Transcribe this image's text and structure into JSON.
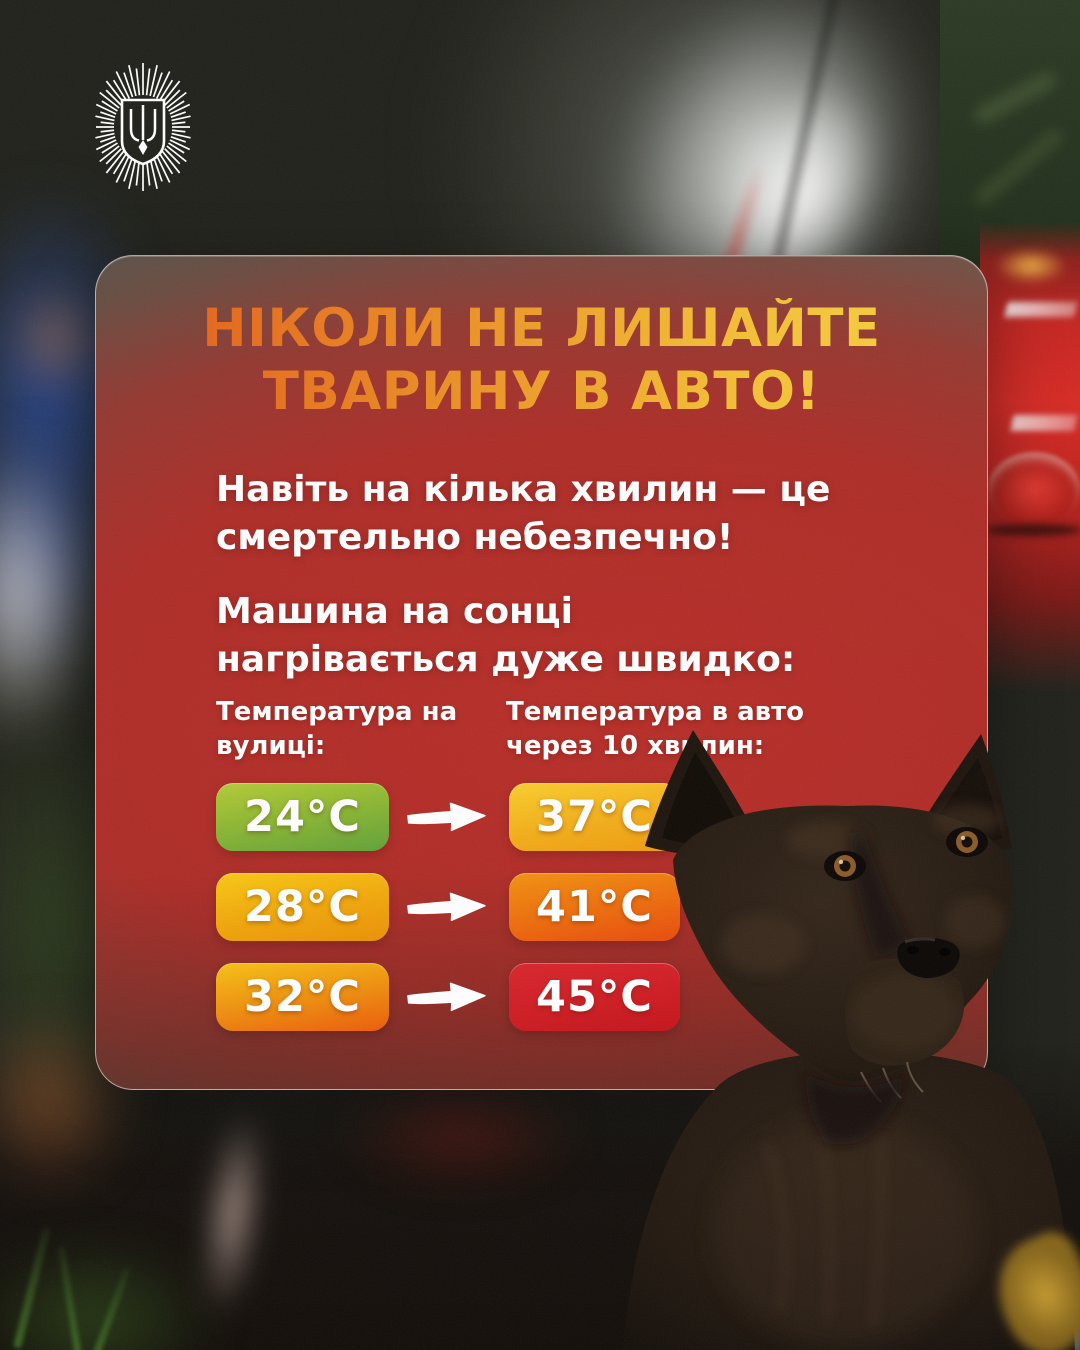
{
  "poster": {
    "title_line1": "НІКОЛИ НЕ ЛИШАЙТЕ",
    "title_line2": "ТВАРИНУ В АВТО!",
    "warning": "Навіть на кілька хвилин — це смертельно небезпечно!",
    "heating_line1": "Машина на сонці",
    "heating_line2": "нагрівається дуже швидко:",
    "col_outside": "Температура на вулиці:",
    "col_in_car": "Температура в авто через 10 хвилин:",
    "rows": [
      {
        "outside": "24°C",
        "in_car": "37°C"
      },
      {
        "outside": "28°C",
        "in_car": "41°C"
      },
      {
        "outside": "32°C",
        "in_car": "45°C"
      }
    ]
  },
  "chart_data": {
    "type": "table",
    "title": "Машина на сонці нагрівається дуже швидко",
    "columns": [
      "Температура на вулиці",
      "Температура в авто через 10 хвилин"
    ],
    "rows_celsius": [
      [
        24,
        37
      ],
      [
        28,
        41
      ],
      [
        32,
        45
      ]
    ]
  },
  "colors": {
    "title_gradient": [
      "#e2551a",
      "#f8d644"
    ],
    "card_red": "#b42a26",
    "badge_24": [
      "#b4cb37",
      "#62a13a"
    ],
    "badge_37": [
      "#f9ce2e",
      "#ef9b10"
    ],
    "badge_28": [
      "#f8c913",
      "#ec9106"
    ],
    "badge_41": [
      "#f2920f",
      "#e84b0c"
    ],
    "badge_32": [
      "#f6c214",
      "#ec5c0a"
    ],
    "badge_45": [
      "#d8262c",
      "#c4141b"
    ],
    "emblem": "#ffffff",
    "text": "#ffffff"
  }
}
